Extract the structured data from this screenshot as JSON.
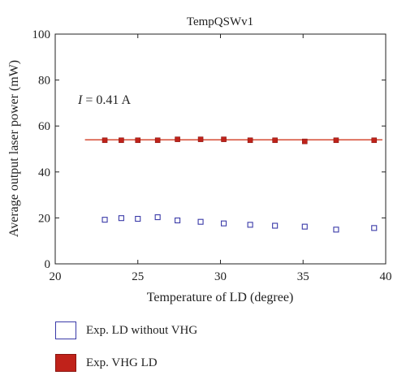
{
  "chart_data": {
    "type": "scatter",
    "title": "TempQSWv1",
    "xlabel": "Temperature of LD (degree)",
    "ylabel": "Average output laser power (mW)",
    "xlim": [
      20,
      40
    ],
    "ylim": [
      0,
      100
    ],
    "xticks": [
      20,
      25,
      30,
      35,
      40
    ],
    "yticks": [
      0,
      20,
      40,
      60,
      80,
      100
    ],
    "annotation": {
      "prefix": "I",
      "value": " = 0.41 A"
    },
    "grid": false,
    "legend_position": "bottom",
    "series": [
      {
        "name": "Exp. LD without VHG",
        "marker": "square-open",
        "color": "#3a3aa8",
        "x": [
          23.0,
          24.0,
          25.0,
          26.2,
          27.4,
          28.8,
          30.2,
          31.8,
          33.3,
          35.1,
          37.0,
          39.3
        ],
        "y": [
          19.2,
          19.9,
          19.6,
          20.3,
          18.9,
          18.3,
          17.6,
          17.0,
          16.6,
          16.2,
          14.9,
          15.6
        ]
      },
      {
        "name": "Exp. VHG LD",
        "marker": "square-filled",
        "color": "#c0221a",
        "x": [
          23.0,
          24.0,
          25.0,
          26.2,
          27.4,
          28.8,
          30.2,
          31.8,
          33.3,
          35.1,
          37.0,
          39.3
        ],
        "y": [
          53.8,
          53.8,
          53.8,
          53.8,
          54.2,
          54.2,
          54.2,
          53.8,
          53.8,
          53.3,
          53.8,
          53.8
        ]
      }
    ],
    "fit_line": {
      "color": "#d23a1f",
      "x": [
        21.8,
        39.8
      ],
      "y": [
        54.0,
        54.0
      ]
    }
  }
}
